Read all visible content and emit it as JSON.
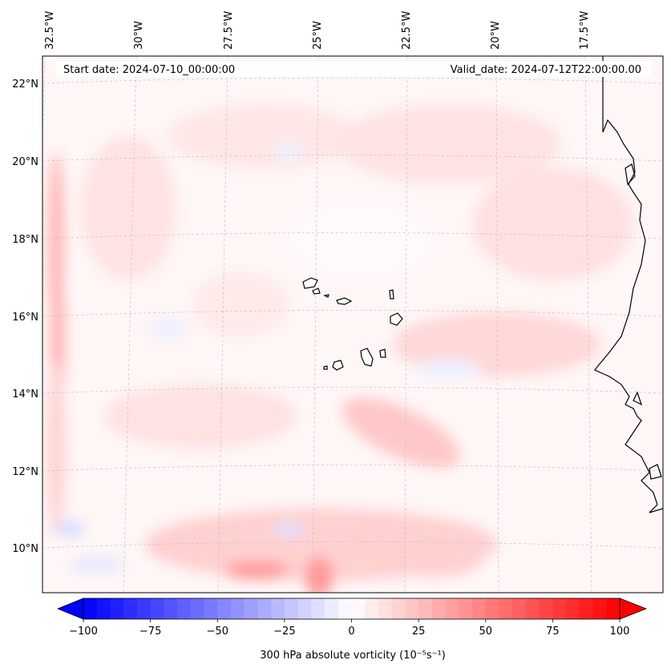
{
  "map": {
    "start_date": "Start date: 2024-07-10_00:00:00",
    "valid_date": "Valid_date: 2024-07-12T22:00:00.00",
    "lon_labels": [
      "32.5°W",
      "30°W",
      "27.5°W",
      "25°W",
      "22.5°W",
      "20°W",
      "17.5°W"
    ],
    "lat_labels": [
      "22°N",
      "20°N",
      "18°N",
      "16°N",
      "14°N",
      "12°N",
      "10°N"
    ],
    "coastline_color": "#000000",
    "gridline_color": "#b8b8b8",
    "field_colors": {
      "positive": "#ff0000",
      "negative": "#0000ff",
      "neutral": "#ffffff"
    }
  },
  "colorbar": {
    "tick_labels": [
      "−100",
      "−75",
      "−50",
      "−25",
      "0",
      "25",
      "50",
      "75",
      "100"
    ],
    "label": "300 hPa absolute vorticity",
    "units": "(10⁻⁵s⁻¹)",
    "min": -100,
    "max": 100,
    "levels": 40
  }
}
